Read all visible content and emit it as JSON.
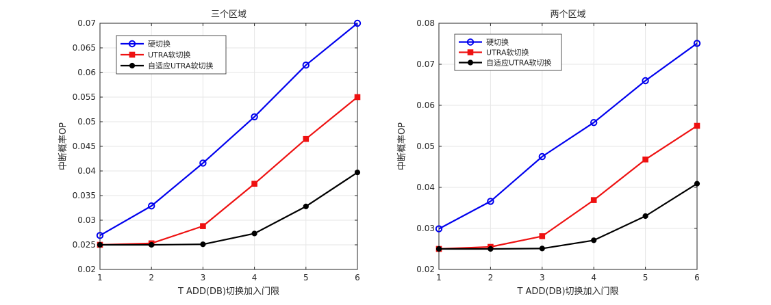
{
  "colors": {
    "blue": "#0000ee",
    "red": "#ee1111",
    "black": "#000000",
    "grid": "#e6e6e6",
    "axis": "#262626"
  },
  "chart_data": [
    {
      "type": "line",
      "title": "三个区域",
      "xlabel": "T ADD(DB)切换加入门限",
      "ylabel": "中断概率OP",
      "x": [
        1,
        2,
        3,
        4,
        5,
        6
      ],
      "xticks": [
        "1",
        "2",
        "3",
        "4",
        "5",
        "6"
      ],
      "ylim": [
        0.02,
        0.07
      ],
      "yticks": [
        0.02,
        0.025,
        0.03,
        0.035,
        0.04,
        0.045,
        0.05,
        0.055,
        0.06,
        0.065,
        0.07
      ],
      "ytick_labels": [
        "0.02",
        "0.025",
        "0.03",
        "0.035",
        "0.04",
        "0.045",
        "0.05",
        "0.055",
        "0.06",
        "0.065",
        "0.07"
      ],
      "grid": true,
      "legend_position": "top-left",
      "series": [
        {
          "name": "硬切换",
          "color": "#0000ee",
          "marker": "circle",
          "values": [
            0.0269,
            0.0329,
            0.0416,
            0.051,
            0.0615,
            0.07
          ]
        },
        {
          "name": "UTRA软切换",
          "color": "#ee1111",
          "marker": "square",
          "values": [
            0.025,
            0.0253,
            0.0288,
            0.0374,
            0.0465,
            0.055
          ]
        },
        {
          "name": "自适应UTRA软切换",
          "color": "#000000",
          "marker": "dot",
          "values": [
            0.025,
            0.025,
            0.0251,
            0.0273,
            0.0328,
            0.0397
          ]
        }
      ]
    },
    {
      "type": "line",
      "title": "两个区域",
      "xlabel": "T ADD(DB)切换加入门限",
      "ylabel": "中断概率OP",
      "x": [
        1,
        2,
        3,
        4,
        5,
        6
      ],
      "xticks": [
        "1",
        "2",
        "3",
        "4",
        "5",
        "6"
      ],
      "ylim": [
        0.02,
        0.08
      ],
      "yticks": [
        0.02,
        0.03,
        0.04,
        0.05,
        0.06,
        0.07,
        0.08
      ],
      "ytick_labels": [
        "0.02",
        "0.03",
        "0.04",
        "0.05",
        "0.06",
        "0.07",
        "0.08"
      ],
      "grid": true,
      "legend_position": "top-left",
      "series": [
        {
          "name": "硬切换",
          "color": "#0000ee",
          "marker": "circle",
          "values": [
            0.0299,
            0.0366,
            0.0475,
            0.0558,
            0.066,
            0.0751
          ]
        },
        {
          "name": "UTRA软切换",
          "color": "#ee1111",
          "marker": "square",
          "values": [
            0.025,
            0.0255,
            0.0281,
            0.0369,
            0.0468,
            0.055
          ]
        },
        {
          "name": "自适应UTRA软切换",
          "color": "#000000",
          "marker": "dot",
          "values": [
            0.025,
            0.025,
            0.0251,
            0.0271,
            0.033,
            0.0409
          ]
        }
      ]
    }
  ]
}
